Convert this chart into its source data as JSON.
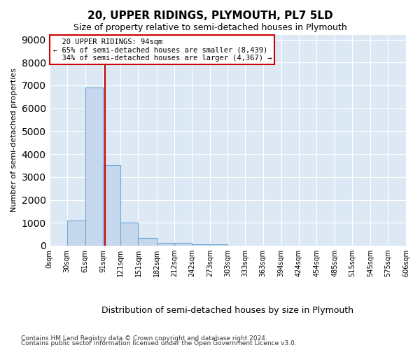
{
  "title": "20, UPPER RIDINGS, PLYMOUTH, PL7 5LD",
  "subtitle": "Size of property relative to semi-detached houses in Plymouth",
  "xlabel": "Distribution of semi-detached houses by size in Plymouth",
  "ylabel": "Number of semi-detached properties",
  "property_size": 94,
  "property_label": "20 UPPER RIDINGS: 94sqm",
  "pct_smaller": 65,
  "n_smaller": 8439,
  "pct_larger": 34,
  "n_larger": 4367,
  "bar_color": "#c5d8ed",
  "bar_edge_color": "#6fa8d4",
  "line_color": "#cc0000",
  "background_color": "#dce9f5",
  "bins_start": [
    0,
    30,
    61,
    91,
    121,
    151,
    182,
    212,
    242,
    273,
    303,
    333,
    363,
    394,
    424,
    454,
    485,
    515,
    545,
    575
  ],
  "bins_end": [
    30,
    61,
    91,
    121,
    151,
    182,
    212,
    242,
    273,
    303,
    333,
    363,
    394,
    424,
    454,
    485,
    515,
    545,
    575,
    606
  ],
  "bin_labels": [
    "0sqm",
    "30sqm",
    "61sqm",
    "91sqm",
    "121sqm",
    "151sqm",
    "182sqm",
    "212sqm",
    "242sqm",
    "273sqm",
    "303sqm",
    "333sqm",
    "363sqm",
    "394sqm",
    "424sqm",
    "454sqm",
    "485sqm",
    "515sqm",
    "545sqm",
    "575sqm",
    "606sqm"
  ],
  "counts": [
    0,
    1100,
    6900,
    3500,
    1000,
    350,
    130,
    120,
    70,
    70,
    0,
    0,
    0,
    0,
    0,
    0,
    0,
    0,
    0,
    0
  ],
  "ylim": [
    0,
    9200
  ],
  "yticks": [
    0,
    1000,
    2000,
    3000,
    4000,
    5000,
    6000,
    7000,
    8000,
    9000
  ],
  "footer_line1": "Contains HM Land Registry data © Crown copyright and database right 2024.",
  "footer_line2": "Contains public sector information licensed under the Open Government Licence v3.0."
}
